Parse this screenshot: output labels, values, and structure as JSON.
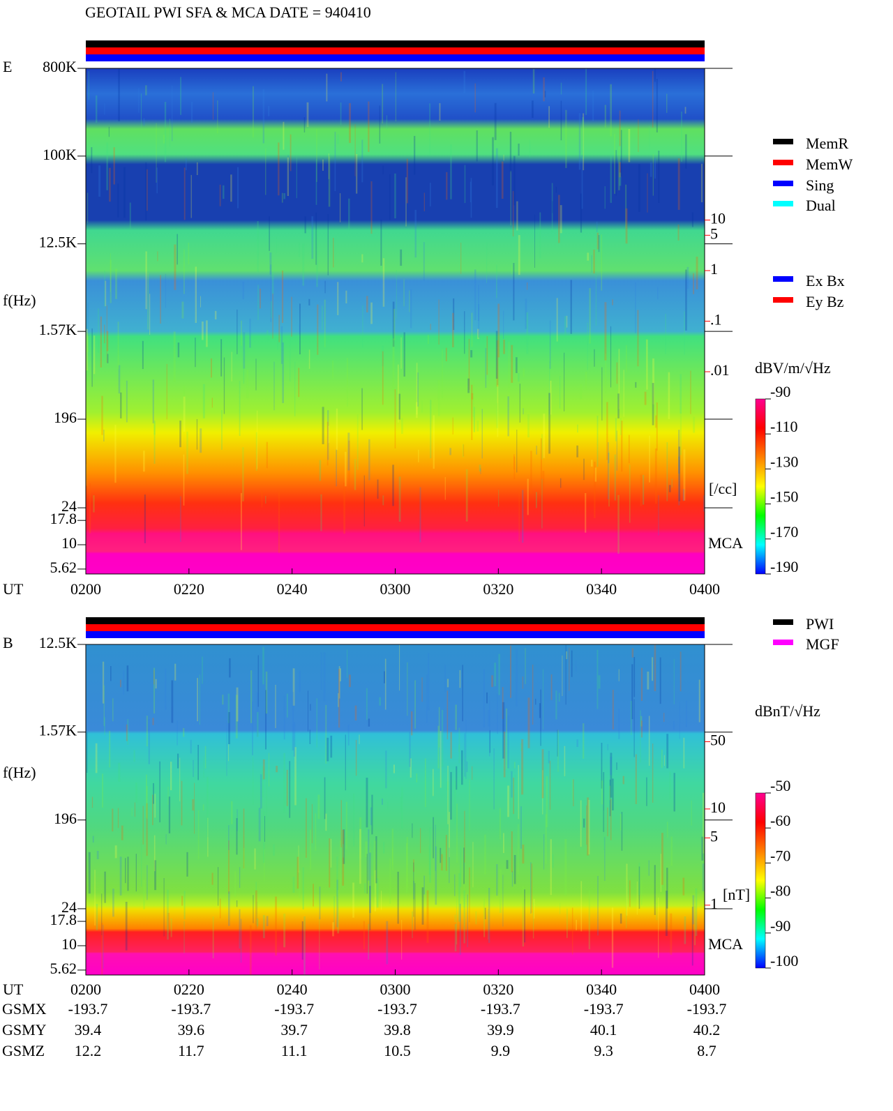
{
  "title": "GEOTAIL  PWI SFA & MCA   DATE = 940410",
  "chart_data": [
    {
      "type": "spectrogram",
      "panel_label": "E",
      "ylabel": "f(Hz)",
      "xlabel": "UT",
      "mca_label": "MCA",
      "yscale": "log",
      "ylim": [
        5,
        800000
      ],
      "yticks": [
        {
          "value": 800000,
          "label": "800K"
        },
        {
          "value": 100000,
          "label": "100K"
        },
        {
          "value": 12500,
          "label": "12.5K"
        },
        {
          "value": 1570,
          "label": "1.57K"
        },
        196,
        24,
        17.8,
        10,
        5.62
      ],
      "xlim": [
        120,
        240
      ],
      "xticks": [
        {
          "value": 120,
          "label": "0200"
        },
        {
          "value": 140,
          "label": "0220"
        },
        {
          "value": 160,
          "label": "0240"
        },
        {
          "value": 180,
          "label": "0300"
        },
        {
          "value": 200,
          "label": "0320"
        },
        {
          "value": 220,
          "label": "0340"
        },
        {
          "value": 240,
          "label": "0400"
        }
      ],
      "y2scale": "log",
      "y2lim": [
        1e-06,
        10000
      ],
      "y2label": "[/cc]",
      "y2ticks": [
        10,
        5,
        1,
        {
          "value": 0.1,
          "label": ".1"
        },
        {
          "value": 0.01,
          "label": ".01"
        }
      ],
      "status_legend": [
        {
          "name": "MemR",
          "color": "#000000"
        },
        {
          "name": "MemW",
          "color": "#ff0000"
        },
        {
          "name": "Sing",
          "color": "#0000ff"
        },
        {
          "name": "Dual",
          "color": "#00ffff"
        }
      ],
      "component_legend": [
        {
          "name": "Ex Bx",
          "color": "#0000ff"
        },
        {
          "name": "Ey Bz",
          "color": "#ff0000"
        }
      ],
      "colorbar_label": "dBV/m/√Hz",
      "clim": [
        -190,
        -90
      ],
      "cticks": [
        -90,
        -110,
        -130,
        -150,
        -170,
        -190
      ],
      "colormap": [
        "#0000ff",
        "#00ffff",
        "#00ff00",
        "#ffff00",
        "#ff8000",
        "#ff0000",
        "#ff0090"
      ]
    },
    {
      "type": "spectrogram",
      "panel_label": "B",
      "ylabel": "f(Hz)",
      "xlabel": "UT",
      "mca_label": "MCA",
      "yscale": "log",
      "ylim": [
        5,
        12500
      ],
      "yticks": [
        {
          "value": 12500,
          "label": "12.5K"
        },
        {
          "value": 1570,
          "label": "1.57K"
        },
        196,
        24,
        17.8,
        10,
        5.62
      ],
      "xlim": [
        120,
        240
      ],
      "xticks": [
        {
          "value": 120,
          "label": "0200"
        },
        {
          "value": 140,
          "label": "0220"
        },
        {
          "value": 160,
          "label": "0240"
        },
        {
          "value": 180,
          "label": "0300"
        },
        {
          "value": 200,
          "label": "0320"
        },
        {
          "value": 220,
          "label": "0340"
        },
        {
          "value": 240,
          "label": "0400"
        }
      ],
      "y2scale": "log",
      "y2lim": [
        0.188,
        513
      ],
      "y2label": "[nT]",
      "y2ticks": [
        50,
        10,
        5,
        1
      ],
      "status_legend": [
        {
          "name": "PWI",
          "color": "#000000"
        },
        {
          "name": "MGF",
          "color": "#ff00ff"
        }
      ],
      "colorbar_label": "dBnT/√Hz",
      "clim": [
        -100,
        -50
      ],
      "cticks": [
        -50,
        -60,
        -70,
        -80,
        -90,
        -100
      ],
      "colormap": [
        "#0000ff",
        "#00ffff",
        "#00ff00",
        "#ffff00",
        "#ff8000",
        "#ff0000",
        "#ff0090"
      ]
    }
  ],
  "orbit_table": {
    "labels": [
      "GSMX",
      "GSMY",
      "GSMZ"
    ],
    "rows": [
      [
        -193.7,
        -193.7,
        -193.7,
        -193.7,
        -193.7,
        -193.7,
        -193.7
      ],
      [
        39.4,
        39.6,
        39.7,
        39.8,
        39.9,
        40.1,
        40.2
      ],
      [
        12.2,
        11.7,
        11.1,
        10.5,
        9.9,
        9.3,
        8.7
      ]
    ]
  }
}
